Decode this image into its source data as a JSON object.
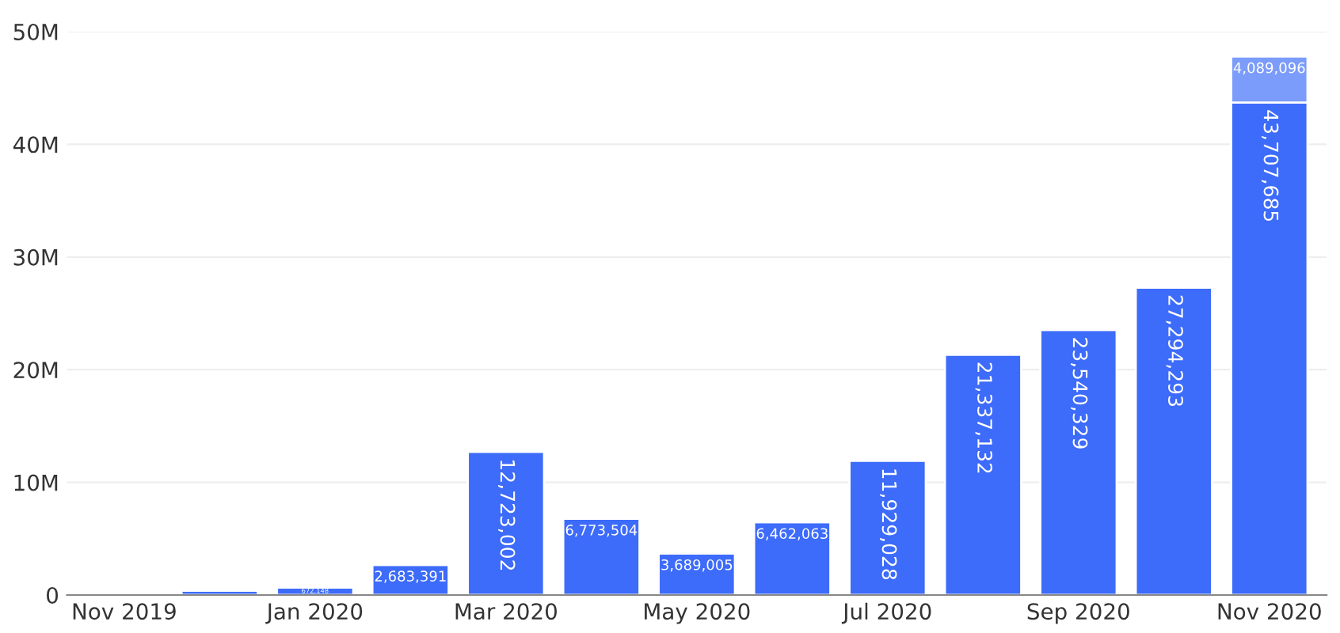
{
  "chart_data": {
    "type": "bar",
    "stacked": true,
    "categories": [
      "Nov 2019",
      null,
      "Jan 2020",
      null,
      "Mar 2020",
      null,
      "May 2020",
      null,
      "Jul 2020",
      null,
      "Sep 2020",
      null,
      "Nov 2020"
    ],
    "series": [
      {
        "color": "#3d6bfa",
        "values": [
          null,
          400000,
          672148,
          2683391,
          12723002,
          6773504,
          3689005,
          6462063,
          11929028,
          21337132,
          23540329,
          27294293,
          43707685
        ],
        "value_labels": [
          null,
          null,
          "672,148",
          "2,683,391",
          "12,723,002",
          "6,773,504",
          "3,689,005",
          "6,462,063",
          "11,929,028",
          "21,337,132",
          "23,540,329",
          "27,294,293",
          "43,707,685"
        ]
      },
      {
        "color": "#7b9cfa",
        "values": [
          null,
          null,
          null,
          null,
          null,
          null,
          null,
          null,
          null,
          null,
          null,
          null,
          4089096
        ],
        "value_labels": [
          null,
          null,
          null,
          null,
          null,
          null,
          null,
          null,
          null,
          null,
          null,
          null,
          "4,089,096"
        ]
      }
    ],
    "ylim": [
      0,
      50000000
    ],
    "yticks": [
      {
        "value": 0,
        "label": "0"
      },
      {
        "value": 10000000,
        "label": "10M"
      },
      {
        "value": 20000000,
        "label": "20M"
      },
      {
        "value": 30000000,
        "label": "30M"
      },
      {
        "value": 40000000,
        "label": "40M"
      },
      {
        "value": 50000000,
        "label": "50M"
      }
    ],
    "grid": "y",
    "legend": false
  }
}
